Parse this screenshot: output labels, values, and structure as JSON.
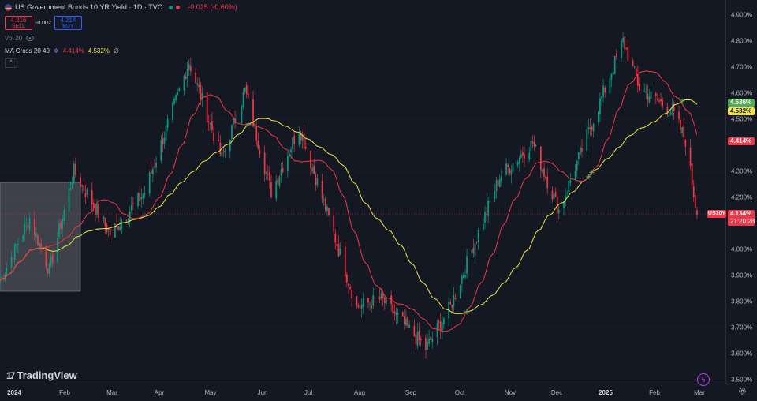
{
  "header": {
    "title": "US Government Bonds 10 YR Yield · 1D · TVC",
    "change": "-0.025 (-0.60%)"
  },
  "trade": {
    "sell_price": "4.216",
    "sell_label": "SELL",
    "spread": "-0.002",
    "buy_price": "4.214",
    "buy_label": "BUY"
  },
  "indicators": {
    "volume_label": "Vol 20",
    "ma_label": "MA Cross 20 49",
    "ma_fast_value": "4.414%",
    "ma_slow_value": "4.532%",
    "ma_suffix": "∅"
  },
  "branding": {
    "logo_text": "TradingView"
  },
  "price_axis": {
    "ticks": [
      "4.900%",
      "4.800%",
      "4.700%",
      "4.600%",
      "4.500%",
      "4.300%",
      "4.200%",
      "4.000%",
      "3.900%",
      "3.800%",
      "3.700%",
      "3.600%",
      "3.500%"
    ],
    "badges": {
      "green": "4.536%",
      "yellow": "4.532%",
      "red": "4.414%",
      "symbol": "US10Y",
      "last": "4.134%",
      "countdown": "21:20:28"
    }
  },
  "time_axis": {
    "labels": [
      "2024",
      "Feb",
      "Mar",
      "Apr",
      "May",
      "Jun",
      "Jul",
      "Aug",
      "Sep",
      "Oct",
      "Nov",
      "Dec",
      "2025",
      "Feb",
      "Mar"
    ]
  },
  "chart_data": {
    "type": "candlestick",
    "title": "US Government Bonds 10 YR Yield · 1D · TVC",
    "y_unit": "%",
    "ylim": [
      3.5,
      4.9
    ],
    "x_range": [
      "2024-01-01",
      "2025-03-01"
    ],
    "current_price": 4.134,
    "price_path": [
      [
        "2024-01-01",
        3.88
      ],
      [
        "2024-01-19",
        4.12
      ],
      [
        "2024-01-31",
        3.92
      ],
      [
        "2024-02-15",
        4.3
      ],
      [
        "2024-03-08",
        4.06
      ],
      [
        "2024-03-29",
        4.22
      ],
      [
        "2024-04-25",
        4.72
      ],
      [
        "2024-05-15",
        4.35
      ],
      [
        "2024-05-29",
        4.61
      ],
      [
        "2024-06-14",
        4.22
      ],
      [
        "2024-07-01",
        4.47
      ],
      [
        "2024-07-17",
        4.16
      ],
      [
        "2024-08-05",
        3.78
      ],
      [
        "2024-08-20",
        3.81
      ],
      [
        "2024-09-16",
        3.62
      ],
      [
        "2024-10-01",
        3.78
      ],
      [
        "2024-10-31",
        4.28
      ],
      [
        "2024-11-20",
        4.41
      ],
      [
        "2024-12-06",
        4.15
      ],
      [
        "2025-01-14",
        4.8
      ],
      [
        "2025-01-24",
        4.62
      ],
      [
        "2025-02-13",
        4.53
      ],
      [
        "2025-02-21",
        4.42
      ],
      [
        "2025-02-28",
        4.134
      ]
    ],
    "series": [
      {
        "name": "MA 20",
        "color": "#f23645",
        "last": 4.414
      },
      {
        "name": "MA 49",
        "color": "#f0e442",
        "last": 4.532
      }
    ],
    "colors": {
      "up": "#089981",
      "down": "#f23645",
      "background": "#141823"
    }
  }
}
